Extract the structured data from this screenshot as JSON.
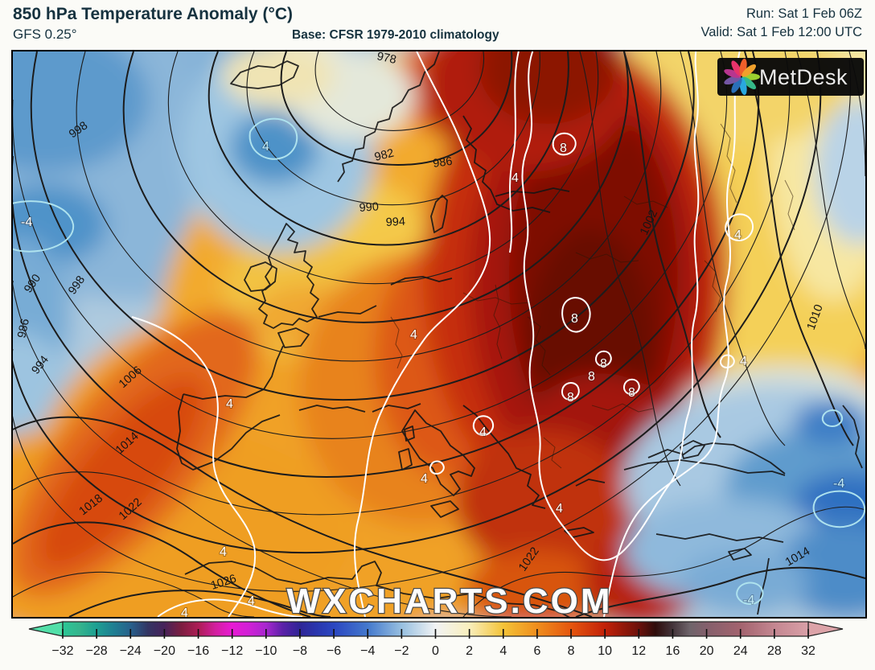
{
  "header": {
    "title": "850 hPa Temperature Anomaly (°C)",
    "model": "GFS 0.25°",
    "base": "Base: CFSR 1979-2010 climatology",
    "run": "Run: Sat 1 Feb 06Z",
    "valid": "Valid: Sat 1 Feb 12:00 UTC"
  },
  "logo": {
    "text": "MetDesk"
  },
  "map": {
    "watermark": "WXCHARTS.COM",
    "isobar_labels": [
      "998",
      "978",
      "982",
      "986",
      "990",
      "994",
      "1002",
      "1010",
      "990",
      "998",
      "986",
      "994",
      "1006",
      "1014",
      "1018",
      "1022",
      "1026",
      "1022",
      "1014"
    ],
    "anomaly_labels": [
      "4",
      "-4",
      "4",
      "8",
      "8",
      "8",
      "8",
      "8",
      "8",
      "4",
      "4",
      "4",
      "4",
      "4",
      "4",
      "4",
      "4",
      "4",
      "4",
      "-4",
      "-4"
    ]
  },
  "colorbar": {
    "ticks": [
      "−32",
      "−28",
      "−24",
      "−20",
      "−16",
      "−12",
      "−10",
      "−8",
      "−6",
      "−4",
      "−2",
      "0",
      "2",
      "4",
      "6",
      "8",
      "10",
      "12",
      "16",
      "20",
      "24",
      "28",
      "32"
    ],
    "left_arrow_color": "#52dfa8",
    "right_arrow_color": "#dca3a8",
    "stops": [
      {
        "p": 0,
        "c": "#2cc796"
      },
      {
        "p": 2.3,
        "c": "#35b48d"
      },
      {
        "p": 4.5,
        "c": "#1da092"
      },
      {
        "p": 6.8,
        "c": "#1f7f92"
      },
      {
        "p": 9.1,
        "c": "#27618c"
      },
      {
        "p": 11.4,
        "c": "#333563"
      },
      {
        "p": 13.6,
        "c": "#46235a"
      },
      {
        "p": 15.9,
        "c": "#7c1e40"
      },
      {
        "p": 18.2,
        "c": "#ad1e55"
      },
      {
        "p": 20.5,
        "c": "#d31f9f"
      },
      {
        "p": 22.7,
        "c": "#e81ad4"
      },
      {
        "p": 25,
        "c": "#d020d6"
      },
      {
        "p": 27.3,
        "c": "#a727cf"
      },
      {
        "p": 29.5,
        "c": "#5b21a8"
      },
      {
        "p": 31.8,
        "c": "#2f2596"
      },
      {
        "p": 34.1,
        "c": "#2a36ae"
      },
      {
        "p": 36.4,
        "c": "#2b47c1"
      },
      {
        "p": 40.9,
        "c": "#4479cd"
      },
      {
        "p": 45.5,
        "c": "#98c0e0"
      },
      {
        "p": 50,
        "c": "#f1f3f4"
      },
      {
        "p": 54.5,
        "c": "#f9efbd"
      },
      {
        "p": 59.1,
        "c": "#f4c338"
      },
      {
        "p": 63.6,
        "c": "#ef8e1d"
      },
      {
        "p": 68.2,
        "c": "#e5560f"
      },
      {
        "p": 72.7,
        "c": "#c32108"
      },
      {
        "p": 77.3,
        "c": "#6b110b"
      },
      {
        "p": 79.5,
        "c": "#2f0d0b"
      },
      {
        "p": 81.8,
        "c": "#44343a"
      },
      {
        "p": 84.1,
        "c": "#6e646a"
      },
      {
        "p": 86.4,
        "c": "#85606c"
      },
      {
        "p": 90.9,
        "c": "#a3636e"
      },
      {
        "p": 95.5,
        "c": "#c48791"
      },
      {
        "p": 100,
        "c": "#d9a0a7"
      }
    ]
  }
}
